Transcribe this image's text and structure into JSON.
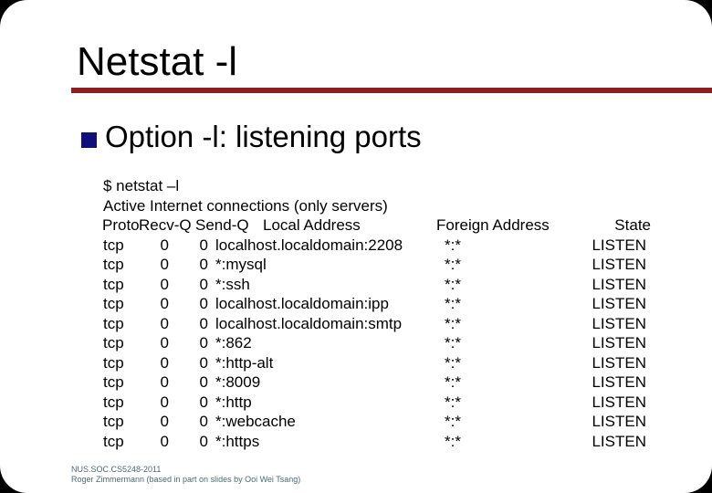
{
  "slide": {
    "title": "Netstat -l",
    "bullet": "Option -l: listening ports",
    "accent_color": "#8c1f1f",
    "bullet_color": "#10107a"
  },
  "terminal": {
    "command": "$ netstat –l",
    "intro": "Active Internet connections (only servers)",
    "headers": {
      "proto": "Proto",
      "recv": "Recv-Q",
      "send": "Send-Q",
      "local": "Local Address",
      "foreign": "Foreign Address",
      "state": "State"
    },
    "rows": [
      {
        "proto": "tcp",
        "recv": "0",
        "send": "0",
        "local": "localhost.localdomain:2208",
        "foreign": "*:*",
        "state": "LISTEN"
      },
      {
        "proto": "tcp",
        "recv": "0",
        "send": "0",
        "local": "*:mysql",
        "foreign": "*:*",
        "state": "LISTEN"
      },
      {
        "proto": "tcp",
        "recv": "0",
        "send": "0",
        "local": "*:ssh",
        "foreign": "*:*",
        "state": "LISTEN"
      },
      {
        "proto": "tcp",
        "recv": "0",
        "send": "0",
        "local": "localhost.localdomain:ipp",
        "foreign": "*:*",
        "state": "LISTEN"
      },
      {
        "proto": "tcp",
        "recv": "0",
        "send": "0",
        "local": "localhost.localdomain:smtp",
        "foreign": "*:*",
        "state": "LISTEN"
      },
      {
        "proto": "tcp",
        "recv": "0",
        "send": "0",
        "local": "*:862",
        "foreign": "*:*",
        "state": "LISTEN"
      },
      {
        "proto": "tcp",
        "recv": "0",
        "send": "0",
        "local": "*:http-alt",
        "foreign": "*:*",
        "state": "LISTEN"
      },
      {
        "proto": "tcp",
        "recv": "0",
        "send": "0",
        "local": "*:8009",
        "foreign": "*:*",
        "state": "LISTEN"
      },
      {
        "proto": "tcp",
        "recv": "0",
        "send": "0",
        "local": "*:http",
        "foreign": "*:*",
        "state": "LISTEN"
      },
      {
        "proto": "tcp",
        "recv": "0",
        "send": "0",
        "local": "*:webcache",
        "foreign": "*:*",
        "state": "LISTEN"
      },
      {
        "proto": "tcp",
        "recv": "0",
        "send": "0",
        "local": "*:https",
        "foreign": "*:*",
        "state": "LISTEN"
      }
    ]
  },
  "footer": {
    "line1": "NUS.SOC.CS5248-2011",
    "line2": "Roger Zimmermann (based in part on slides by Ooi Wei Tsang)"
  }
}
